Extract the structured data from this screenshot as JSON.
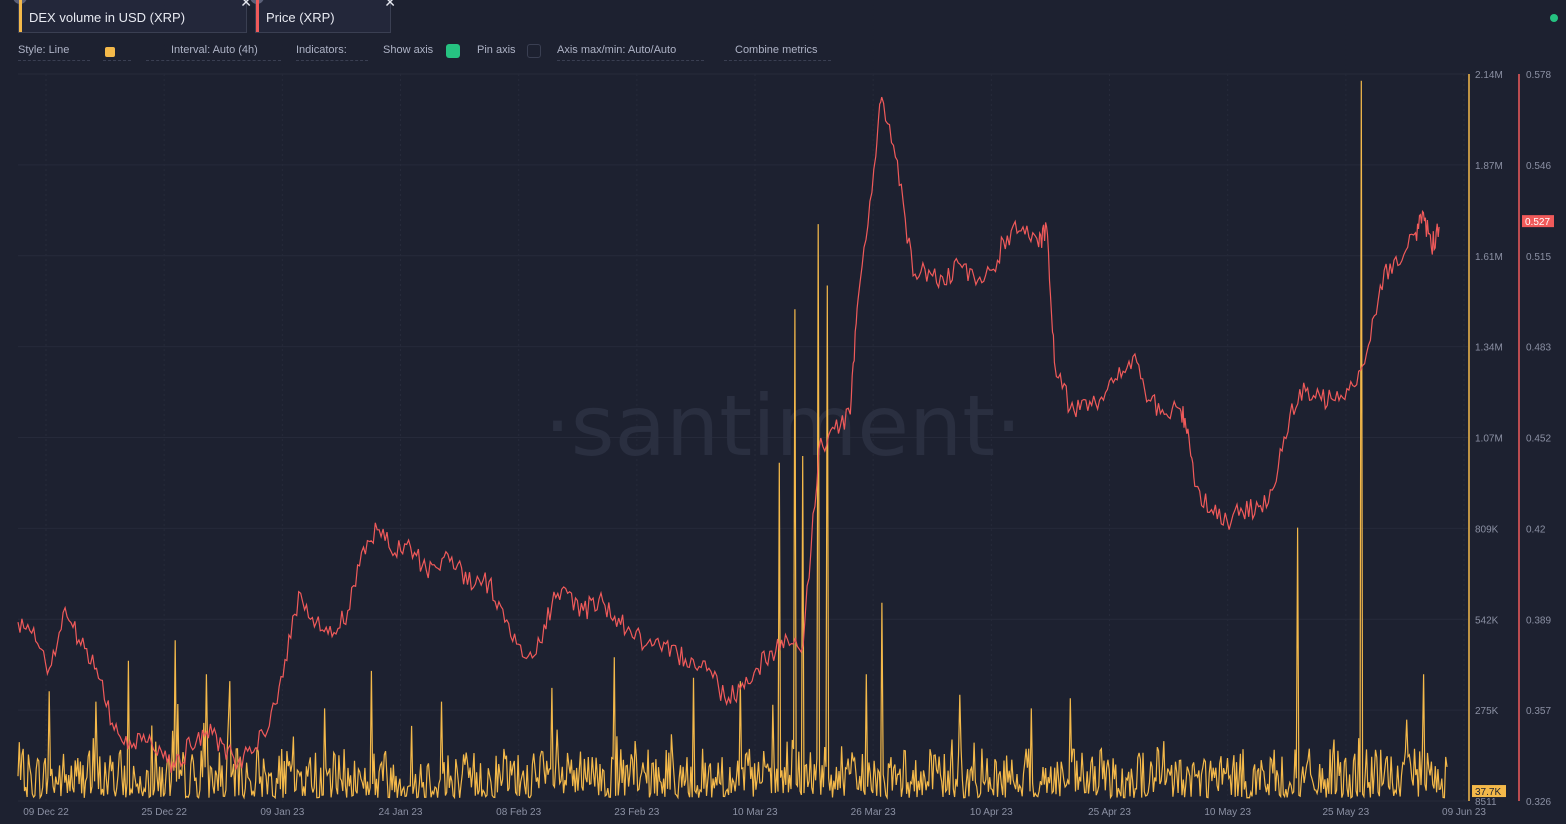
{
  "tabs": [
    {
      "label": "DEX volume in USD (XRP)",
      "color": "#f4b94a"
    },
    {
      "label": "Price (XRP)",
      "color": "#f05a5a"
    }
  ],
  "toolbar": {
    "style": "Style: Line",
    "interval": "Interval: Auto (4h)",
    "indicators": "Indicators:",
    "show_axis": "Show axis",
    "pin_axis": "Pin axis",
    "axis_maxmin": "Axis max/min: Auto/Auto",
    "combine": "Combine metrics",
    "accent": "#26c281"
  },
  "watermark": "·santiment·",
  "chart_data": {
    "type": "line",
    "x_labels": [
      "09 Dec 22",
      "25 Dec 22",
      "09 Jan 23",
      "24 Jan 23",
      "08 Feb 23",
      "23 Feb 23",
      "10 Mar 23",
      "26 Mar 23",
      "10 Apr 23",
      "25 Apr 23",
      "10 May 23",
      "25 May 23",
      "09 Jun 23"
    ],
    "x_range": [
      "2022-12-09",
      "2023-06-09"
    ],
    "left_axis": {
      "ticks": [
        "2.14M",
        "1.87M",
        "1.61M",
        "1.34M",
        "1.07M",
        "809K",
        "542K",
        "275K",
        "8511"
      ],
      "min": 8511,
      "max": 2140000,
      "current_label": "37.7K"
    },
    "right_axis": {
      "ticks": [
        "0.578",
        "0.546",
        "0.515",
        "0.483",
        "0.452",
        "0.42",
        "0.389",
        "0.357",
        "0.326"
      ],
      "min": 0.326,
      "max": 0.578,
      "current_label": "0.527"
    },
    "series": [
      {
        "name": "DEX volume in USD (XRP)",
        "color": "#f4b94a",
        "baseline": 90000,
        "spikes": [
          {
            "date": "2022-12-13",
            "value": 330000
          },
          {
            "date": "2022-12-19",
            "value": 300000
          },
          {
            "date": "2022-12-23",
            "value": 420000
          },
          {
            "date": "2022-12-26",
            "value": 230000
          },
          {
            "date": "2022-12-29",
            "value": 480000
          },
          {
            "date": "2023-01-02",
            "value": 380000
          },
          {
            "date": "2023-01-05",
            "value": 360000
          },
          {
            "date": "2023-01-17",
            "value": 280000
          },
          {
            "date": "2023-01-23",
            "value": 390000
          },
          {
            "date": "2023-02-01",
            "value": 300000
          },
          {
            "date": "2023-02-15",
            "value": 340000
          },
          {
            "date": "2023-02-23",
            "value": 430000
          },
          {
            "date": "2023-03-05",
            "value": 370000
          },
          {
            "date": "2023-03-11",
            "value": 360000
          },
          {
            "date": "2023-03-16",
            "value": 1000000
          },
          {
            "date": "2023-03-18",
            "value": 1450000
          },
          {
            "date": "2023-03-19",
            "value": 1020000
          },
          {
            "date": "2023-03-21",
            "value": 1700000
          },
          {
            "date": "2023-03-22",
            "value": 1520000
          },
          {
            "date": "2023-03-27",
            "value": 380000
          },
          {
            "date": "2023-03-29",
            "value": 590000
          },
          {
            "date": "2023-04-08",
            "value": 320000
          },
          {
            "date": "2023-04-17",
            "value": 280000
          },
          {
            "date": "2023-04-22",
            "value": 310000
          },
          {
            "date": "2023-05-21",
            "value": 810000
          },
          {
            "date": "2023-05-29",
            "value": 2120000
          },
          {
            "date": "2023-06-06",
            "value": 380000
          }
        ]
      },
      {
        "name": "Price (XRP)",
        "color": "#f05a5a",
        "points": [
          [
            "2022-12-09",
            0.388
          ],
          [
            "2022-12-11",
            0.386
          ],
          [
            "2022-12-13",
            0.372
          ],
          [
            "2022-12-15",
            0.393
          ],
          [
            "2022-12-17",
            0.38
          ],
          [
            "2022-12-19",
            0.372
          ],
          [
            "2022-12-21",
            0.353
          ],
          [
            "2022-12-23",
            0.344
          ],
          [
            "2022-12-25",
            0.349
          ],
          [
            "2022-12-27",
            0.345
          ],
          [
            "2022-12-29",
            0.338
          ],
          [
            "2022-12-31",
            0.345
          ],
          [
            "2023-01-02",
            0.35
          ],
          [
            "2023-01-04",
            0.346
          ],
          [
            "2023-01-06",
            0.339
          ],
          [
            "2023-01-08",
            0.343
          ],
          [
            "2023-01-10",
            0.352
          ],
          [
            "2023-01-12",
            0.375
          ],
          [
            "2023-01-14",
            0.398
          ],
          [
            "2023-01-16",
            0.388
          ],
          [
            "2023-01-18",
            0.383
          ],
          [
            "2023-01-20",
            0.392
          ],
          [
            "2023-01-22",
            0.414
          ],
          [
            "2023-01-24",
            0.42
          ],
          [
            "2023-01-26",
            0.412
          ],
          [
            "2023-01-28",
            0.414
          ],
          [
            "2023-01-30",
            0.406
          ],
          [
            "2023-02-01",
            0.41
          ],
          [
            "2023-02-03",
            0.408
          ],
          [
            "2023-02-05",
            0.4
          ],
          [
            "2023-02-07",
            0.402
          ],
          [
            "2023-02-09",
            0.388
          ],
          [
            "2023-02-11",
            0.38
          ],
          [
            "2023-02-13",
            0.377
          ],
          [
            "2023-02-15",
            0.394
          ],
          [
            "2023-02-17",
            0.398
          ],
          [
            "2023-02-19",
            0.392
          ],
          [
            "2023-02-21",
            0.396
          ],
          [
            "2023-02-23",
            0.39
          ],
          [
            "2023-02-25",
            0.385
          ],
          [
            "2023-02-27",
            0.38
          ],
          [
            "2023-03-01",
            0.378
          ],
          [
            "2023-03-03",
            0.377
          ],
          [
            "2023-03-05",
            0.375
          ],
          [
            "2023-03-07",
            0.372
          ],
          [
            "2023-03-09",
            0.362
          ],
          [
            "2023-03-11",
            0.365
          ],
          [
            "2023-03-13",
            0.372
          ],
          [
            "2023-03-15",
            0.378
          ],
          [
            "2023-03-17",
            0.382
          ],
          [
            "2023-03-19",
            0.38
          ],
          [
            "2023-03-21",
            0.448
          ],
          [
            "2023-03-23",
            0.455
          ],
          [
            "2023-03-25",
            0.46
          ],
          [
            "2023-03-26",
            0.5
          ],
          [
            "2023-03-28",
            0.545
          ],
          [
            "2023-03-29",
            0.57
          ],
          [
            "2023-03-31",
            0.548
          ],
          [
            "2023-04-02",
            0.508
          ],
          [
            "2023-04-04",
            0.51
          ],
          [
            "2023-04-06",
            0.505
          ],
          [
            "2023-04-08",
            0.512
          ],
          [
            "2023-04-10",
            0.505
          ],
          [
            "2023-04-12",
            0.51
          ],
          [
            "2023-04-14",
            0.522
          ],
          [
            "2023-04-16",
            0.525
          ],
          [
            "2023-04-18",
            0.518
          ],
          [
            "2023-04-19",
            0.525
          ],
          [
            "2023-04-20",
            0.478
          ],
          [
            "2023-04-22",
            0.462
          ],
          [
            "2023-04-24",
            0.465
          ],
          [
            "2023-04-26",
            0.466
          ],
          [
            "2023-04-28",
            0.472
          ],
          [
            "2023-04-30",
            0.48
          ],
          [
            "2023-05-02",
            0.465
          ],
          [
            "2023-05-04",
            0.46
          ],
          [
            "2023-05-06",
            0.462
          ],
          [
            "2023-05-07",
            0.455
          ],
          [
            "2023-05-08",
            0.435
          ],
          [
            "2023-05-10",
            0.427
          ],
          [
            "2023-05-12",
            0.423
          ],
          [
            "2023-05-14",
            0.426
          ],
          [
            "2023-05-16",
            0.428
          ],
          [
            "2023-05-18",
            0.435
          ],
          [
            "2023-05-20",
            0.46
          ],
          [
            "2023-05-22",
            0.468
          ],
          [
            "2023-05-24",
            0.465
          ],
          [
            "2023-05-26",
            0.468
          ],
          [
            "2023-05-28",
            0.47
          ],
          [
            "2023-05-30",
            0.484
          ],
          [
            "2023-06-01",
            0.51
          ],
          [
            "2023-06-03",
            0.512
          ],
          [
            "2023-06-05",
            0.523
          ],
          [
            "2023-06-06",
            0.53
          ],
          [
            "2023-06-07",
            0.518
          ],
          [
            "2023-06-08",
            0.525
          ]
        ]
      }
    ],
    "grid": true
  }
}
